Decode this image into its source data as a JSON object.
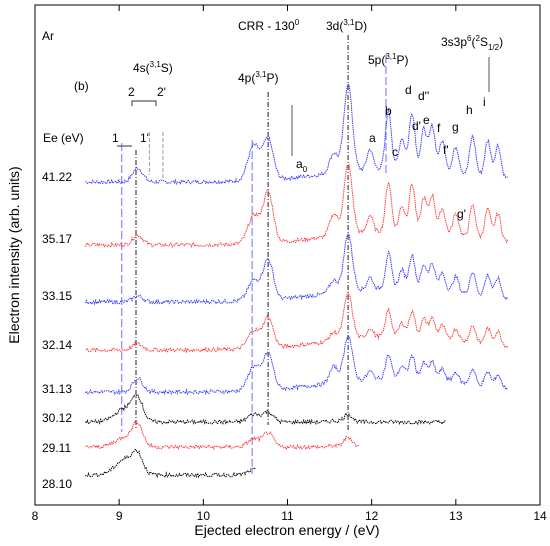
{
  "chart_data": {
    "type": "line",
    "xlabel": "Ejected electron energy / (eV)",
    "ylabel": "Electron intensity (arb. units)",
    "xlim": [
      8,
      14
    ],
    "x_ticks": [
      8,
      9,
      10,
      11,
      12,
      13,
      14
    ],
    "legend_title": "Ee  (eV)",
    "annotations": {
      "element": "Ar",
      "panel": "(b)",
      "crr": "CRR -  130",
      "crr_sup": "0",
      "s4_label": "4s(",
      "s4_sup": "3,1",
      "s4_tail": "S)",
      "p4_label": "4p(",
      "p4_sup": "3,1",
      "p4_tail": "P)",
      "d3_label": "3d(",
      "d3_sup": "3,1",
      "d3_tail": "D)",
      "p5_label": "5p(",
      "p5_sup": "3,1",
      "p5_tail": "P)",
      "s3p6_label": "3s3p",
      "s3p6_sup": "6",
      "s3p6_mid": "(",
      "s3p6_sup2": "2",
      "s3p6_s": "S",
      "s3p6_sub": "1/2",
      "s3p6_tail": ")",
      "peak_1": "1",
      "peak_1p": "1'",
      "peak_2": "2",
      "peak_2p": "2'",
      "peak_a0": "a",
      "peak_a0_sub": "0",
      "peak_a": "a",
      "peak_b": "b",
      "peak_c": "c",
      "peak_d": "d",
      "peak_dp": "d'",
      "peak_dpp": "d''",
      "peak_e": "e",
      "peak_f": "f",
      "peak_fp": "f'",
      "peak_g": "g",
      "peak_gp": "g'",
      "peak_h": "h",
      "peak_i": "i"
    },
    "reference_lines_eV": [
      9.03,
      9.2,
      9.36,
      9.52,
      10.58,
      10.77,
      11.72,
      12.17
    ],
    "series": [
      {
        "name": "41.22",
        "color": "#3333ff",
        "x_range": [
          8.6,
          13.62
        ]
      },
      {
        "name": "35.17",
        "color": "#ff3333",
        "x_range": [
          8.6,
          13.62
        ]
      },
      {
        "name": "33.15",
        "color": "#3333ff",
        "x_range": [
          8.6,
          13.62
        ]
      },
      {
        "name": "32.14",
        "color": "#ff3333",
        "x_range": [
          8.6,
          13.62
        ]
      },
      {
        "name": "31.13",
        "color": "#3333ff",
        "x_range": [
          8.6,
          13.62
        ]
      },
      {
        "name": "30.12",
        "color": "#000000",
        "x_range": [
          8.6,
          12.88
        ]
      },
      {
        "name": "29.11",
        "color": "#ff3333",
        "x_range": [
          8.6,
          11.85
        ]
      },
      {
        "name": "28.10",
        "color": "#000000",
        "x_range": [
          8.6,
          10.62
        ]
      }
    ]
  }
}
